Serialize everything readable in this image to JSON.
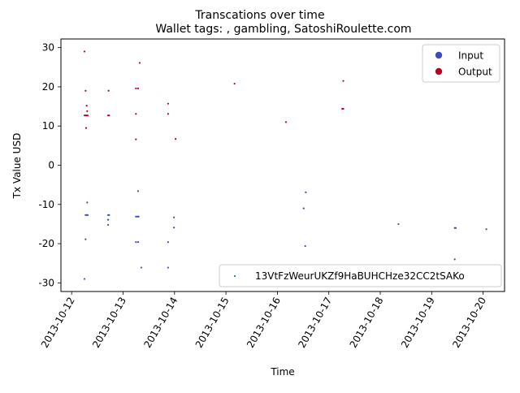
{
  "chart_data": {
    "type": "scatter",
    "title": "Transcations over time",
    "subtitle": "Wallet tags: , gambling, SatoshiRoulette.com",
    "xlabel": "Time",
    "ylabel": "Tx Value USD",
    "x_ticks": [
      "2013-10-12",
      "2013-10-13",
      "2013-10-14",
      "2013-10-15",
      "2013-10-16",
      "2013-10-17",
      "2013-10-18",
      "2013-10-19",
      "2013-10-20"
    ],
    "y_ticks": [
      -30,
      -20,
      -10,
      0,
      10,
      20,
      30
    ],
    "xlim": [
      "2013-10-11T19:00",
      "2013-10-20T10:00"
    ],
    "ylim": [
      -32.2,
      32.2
    ],
    "grid": false,
    "legends": [
      {
        "placement": "upper-right",
        "entries": [
          {
            "label": "Input",
            "color": "#3b4cc0"
          },
          {
            "label": "Output",
            "color": "#b40426"
          }
        ]
      },
      {
        "placement": "lower-right",
        "entries": [
          {
            "label": "13VtFzWeurUKZf9HaBUHCHze32CC2tSAKo",
            "color": "#1f77b4"
          }
        ]
      }
    ],
    "series": [
      {
        "name": "Output",
        "color": "#b40426",
        "points": [
          [
            "2013-10-12T06:00",
            29.0
          ],
          [
            "2013-10-12T06:30",
            19.0
          ],
          [
            "2013-10-12T07:00",
            15.2
          ],
          [
            "2013-10-12T07:15",
            13.8
          ],
          [
            "2013-10-12T06:00",
            12.7
          ],
          [
            "2013-10-12T06:30",
            12.7
          ],
          [
            "2013-10-12T07:00",
            12.7
          ],
          [
            "2013-10-12T07:30",
            12.7
          ],
          [
            "2013-10-12T06:45",
            9.5
          ],
          [
            "2013-10-12T17:15",
            19.0
          ],
          [
            "2013-10-12T17:00",
            12.7
          ],
          [
            "2013-10-12T17:30",
            12.7
          ],
          [
            "2013-10-13T06:00",
            19.6
          ],
          [
            "2013-10-13T07:00",
            19.6
          ],
          [
            "2013-10-13T07:45",
            26.1
          ],
          [
            "2013-10-13T06:00",
            13.1
          ],
          [
            "2013-10-13T06:00",
            6.6
          ],
          [
            "2013-10-13T21:00",
            15.7
          ],
          [
            "2013-10-13T21:00",
            13.1
          ],
          [
            "2013-10-14T00:30",
            6.7
          ],
          [
            "2013-10-15T04:00",
            20.8
          ],
          [
            "2013-10-16T04:00",
            11.0
          ],
          [
            "2013-10-17T06:45",
            21.5
          ],
          [
            "2013-10-17T06:15",
            14.4
          ],
          [
            "2013-10-17T06:45",
            14.4
          ]
        ]
      },
      {
        "name": "Input",
        "color": "#3b4cc0",
        "points": [
          [
            "2013-10-12T06:00",
            -29.0
          ],
          [
            "2013-10-12T06:30",
            -18.9
          ],
          [
            "2013-10-12T07:15",
            -9.5
          ],
          [
            "2013-10-12T06:30",
            -12.7
          ],
          [
            "2013-10-12T07:00",
            -12.7
          ],
          [
            "2013-10-12T07:30",
            -12.7
          ],
          [
            "2013-10-12T17:00",
            -12.7
          ],
          [
            "2013-10-12T17:30",
            -12.7
          ],
          [
            "2013-10-12T17:00",
            -13.9
          ],
          [
            "2013-10-12T17:00",
            -15.2
          ],
          [
            "2013-10-13T06:00",
            -13.1
          ],
          [
            "2013-10-13T06:45",
            -13.1
          ],
          [
            "2013-10-13T07:15",
            -13.1
          ],
          [
            "2013-10-13T06:00",
            -19.6
          ],
          [
            "2013-10-13T07:00",
            -19.6
          ],
          [
            "2013-10-13T07:00",
            -6.6
          ],
          [
            "2013-10-13T08:30",
            -26.1
          ],
          [
            "2013-10-13T21:00",
            -19.6
          ],
          [
            "2013-10-13T21:00",
            -26.1
          ],
          [
            "2013-10-13T23:45",
            -13.3
          ],
          [
            "2013-10-13T23:45",
            -15.9
          ],
          [
            "2013-10-16T12:15",
            -11.0
          ],
          [
            "2013-10-16T13:15",
            -6.9
          ],
          [
            "2013-10-16T13:00",
            -20.6
          ],
          [
            "2013-10-18T08:30",
            -15.0
          ],
          [
            "2013-10-19T10:45",
            -16.0
          ],
          [
            "2013-10-19T11:15",
            -16.0
          ],
          [
            "2013-10-19T10:45",
            -24.0
          ],
          [
            "2013-10-20T01:30",
            -16.3
          ]
        ]
      }
    ]
  }
}
